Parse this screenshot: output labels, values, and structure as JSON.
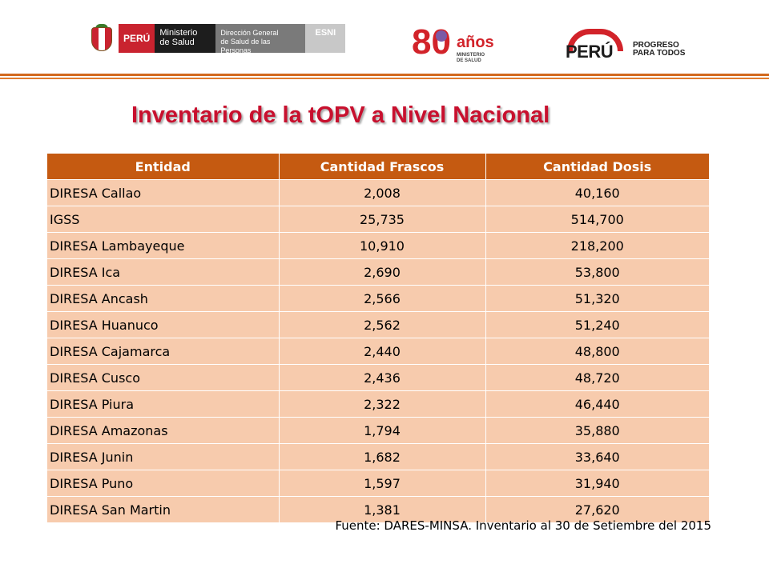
{
  "header": {
    "minsa": {
      "country": "PERÚ",
      "ministry_line1": "Ministerio",
      "ministry_line2": "de Salud",
      "direction_line1": "Dirección General",
      "direction_line2": "de Salud de las Personas",
      "unit": "ESNI"
    },
    "anniversary": {
      "number": "80",
      "word": "años",
      "sub_line1": "MINISTERIO",
      "sub_line2": "DE SALUD"
    },
    "government": {
      "word": "PERÚ",
      "tagline_line1": "PROGRESO",
      "tagline_line2": "PARA TODOS"
    }
  },
  "title": "Inventario de la tOPV a Nivel Nacional",
  "table": {
    "columns": [
      "Entidad",
      "Cantidad Frascos",
      "Cantidad Dosis"
    ],
    "rows": [
      {
        "entidad": "DIRESA Callao",
        "frascos": "2,008",
        "dosis": "40,160"
      },
      {
        "entidad": "IGSS",
        "frascos": "25,735",
        "dosis": "514,700"
      },
      {
        "entidad": "DIRESA Lambayeque",
        "frascos": "10,910",
        "dosis": "218,200"
      },
      {
        "entidad": "DIRESA Ica",
        "frascos": "2,690",
        "dosis": "53,800"
      },
      {
        "entidad": "DIRESA Ancash",
        "frascos": "2,566",
        "dosis": "51,320"
      },
      {
        "entidad": "DIRESA Huanuco",
        "frascos": "2,562",
        "dosis": "51,240"
      },
      {
        "entidad": "DIRESA Cajamarca",
        "frascos": "2,440",
        "dosis": "48,800"
      },
      {
        "entidad": "DIRESA Cusco",
        "frascos": "2,436",
        "dosis": "48,720"
      },
      {
        "entidad": "DIRESA Piura",
        "frascos": "2,322",
        "dosis": "46,440"
      },
      {
        "entidad": "DIRESA Amazonas",
        "frascos": "1,794",
        "dosis": "35,880"
      },
      {
        "entidad": "DIRESA Junin",
        "frascos": "1,682",
        "dosis": "33,640"
      },
      {
        "entidad": "DIRESA Puno",
        "frascos": "1,597",
        "dosis": "31,940"
      },
      {
        "entidad": "DIRESA San Martin",
        "frascos": "1,381",
        "dosis": "27,620"
      }
    ]
  },
  "source": "Fuente: DARES-MINSA. Inventario al 30 de Setiembre del 2015",
  "colors": {
    "header_fill": "#c55a11",
    "row_fill": "#f7cbad",
    "title": "#c8102e",
    "brand_red": "#d2232a"
  }
}
